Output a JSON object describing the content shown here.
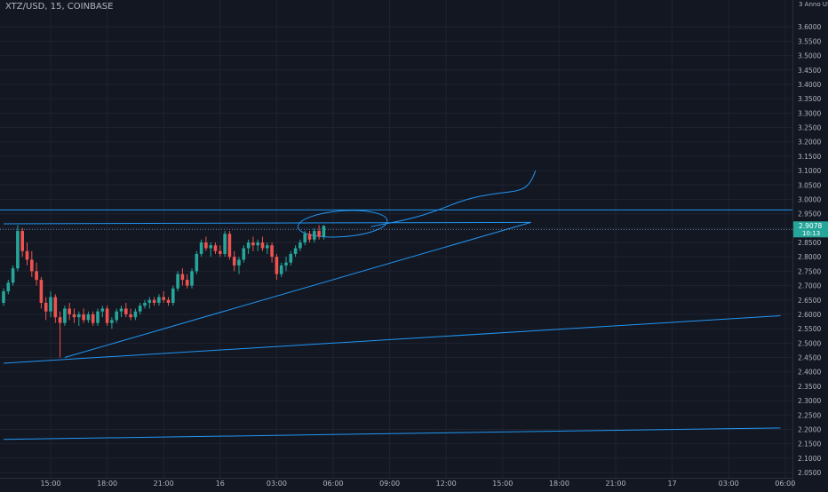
{
  "header": {
    "symbol_title": "XTZ/USD, 15, COINBASE",
    "price_axis_header": "3 Anno USD"
  },
  "chart_data": {
    "type": "candlestick",
    "title": "XTZ/USD, 15, COINBASE",
    "interval": "15",
    "exchange": "COINBASE",
    "ylim": [
      2.05,
      3.65
    ],
    "y_ticks": [
      2.05,
      2.1,
      2.15,
      2.2,
      2.25,
      2.3,
      2.35,
      2.4,
      2.45,
      2.5,
      2.55,
      2.6,
      2.65,
      2.7,
      2.75,
      2.8,
      2.85,
      2.9,
      2.95,
      3.0,
      3.05,
      3.1,
      3.15,
      3.2,
      3.25,
      3.3,
      3.35,
      3.4,
      3.45,
      3.5,
      3.55,
      3.6
    ],
    "y_tick_labels": [
      "2.0500",
      "2.1000",
      "2.1500",
      "2.2000",
      "2.2500",
      "2.3000",
      "2.3500",
      "2.4000",
      "2.4500",
      "2.5000",
      "2.5500",
      "2.6000",
      "2.6500",
      "2.7000",
      "2.7500",
      "2.8000",
      "2.8500",
      "2.9000",
      "2.9500",
      "3.0000",
      "3.0500",
      "3.1000",
      "3.1500",
      "3.2000",
      "3.2500",
      "3.3000",
      "3.3500",
      "3.4000",
      "3.4500",
      "3.5000",
      "3.5500",
      "3.6000"
    ],
    "x_ticks": [
      {
        "label": "15:00",
        "bar": 10
      },
      {
        "label": "18:00",
        "bar": 22
      },
      {
        "label": "21:00",
        "bar": 34
      },
      {
        "label": "16",
        "bar": 46
      },
      {
        "label": "03:00",
        "bar": 58
      },
      {
        "label": "06:00",
        "bar": 70
      },
      {
        "label": "09:00",
        "bar": 82
      },
      {
        "label": "12:00",
        "bar": 94
      },
      {
        "label": "15:00",
        "bar": 106
      },
      {
        "label": "18:00",
        "bar": 118
      },
      {
        "label": "21:00",
        "bar": 130
      },
      {
        "label": "17",
        "bar": 142
      },
      {
        "label": "03:00",
        "bar": 154
      },
      {
        "label": "06:00",
        "bar": 166
      }
    ],
    "candles": [
      {
        "o": 2.64,
        "h": 2.69,
        "l": 2.63,
        "c": 2.68
      },
      {
        "o": 2.68,
        "h": 2.72,
        "l": 2.67,
        "c": 2.71
      },
      {
        "o": 2.71,
        "h": 2.77,
        "l": 2.7,
        "c": 2.76
      },
      {
        "o": 2.76,
        "h": 2.91,
        "l": 2.75,
        "c": 2.89
      },
      {
        "o": 2.89,
        "h": 2.9,
        "l": 2.8,
        "c": 2.82
      },
      {
        "o": 2.82,
        "h": 2.85,
        "l": 2.77,
        "c": 2.79
      },
      {
        "o": 2.79,
        "h": 2.82,
        "l": 2.73,
        "c": 2.75
      },
      {
        "o": 2.75,
        "h": 2.78,
        "l": 2.7,
        "c": 2.72
      },
      {
        "o": 2.72,
        "h": 2.73,
        "l": 2.62,
        "c": 2.64
      },
      {
        "o": 2.64,
        "h": 2.66,
        "l": 2.58,
        "c": 2.61
      },
      {
        "o": 2.61,
        "h": 2.68,
        "l": 2.59,
        "c": 2.66
      },
      {
        "o": 2.66,
        "h": 2.67,
        "l": 2.57,
        "c": 2.59
      },
      {
        "o": 2.59,
        "h": 2.61,
        "l": 2.45,
        "c": 2.57
      },
      {
        "o": 2.57,
        "h": 2.63,
        "l": 2.56,
        "c": 2.62
      },
      {
        "o": 2.62,
        "h": 2.64,
        "l": 2.58,
        "c": 2.6
      },
      {
        "o": 2.6,
        "h": 2.62,
        "l": 2.57,
        "c": 2.59
      },
      {
        "o": 2.59,
        "h": 2.61,
        "l": 2.56,
        "c": 2.6
      },
      {
        "o": 2.6,
        "h": 2.62,
        "l": 2.57,
        "c": 2.58
      },
      {
        "o": 2.58,
        "h": 2.61,
        "l": 2.57,
        "c": 2.6
      },
      {
        "o": 2.6,
        "h": 2.61,
        "l": 2.56,
        "c": 2.57
      },
      {
        "o": 2.57,
        "h": 2.62,
        "l": 2.56,
        "c": 2.61
      },
      {
        "o": 2.61,
        "h": 2.63,
        "l": 2.59,
        "c": 2.62
      },
      {
        "o": 2.62,
        "h": 2.63,
        "l": 2.56,
        "c": 2.57
      },
      {
        "o": 2.57,
        "h": 2.59,
        "l": 2.55,
        "c": 2.58
      },
      {
        "o": 2.58,
        "h": 2.62,
        "l": 2.57,
        "c": 2.61
      },
      {
        "o": 2.61,
        "h": 2.63,
        "l": 2.59,
        "c": 2.62
      },
      {
        "o": 2.62,
        "h": 2.64,
        "l": 2.59,
        "c": 2.6
      },
      {
        "o": 2.6,
        "h": 2.62,
        "l": 2.58,
        "c": 2.59
      },
      {
        "o": 2.59,
        "h": 2.62,
        "l": 2.58,
        "c": 2.61
      },
      {
        "o": 2.61,
        "h": 2.64,
        "l": 2.6,
        "c": 2.63
      },
      {
        "o": 2.63,
        "h": 2.65,
        "l": 2.62,
        "c": 2.64
      },
      {
        "o": 2.64,
        "h": 2.66,
        "l": 2.62,
        "c": 2.65
      },
      {
        "o": 2.65,
        "h": 2.66,
        "l": 2.63,
        "c": 2.64
      },
      {
        "o": 2.64,
        "h": 2.67,
        "l": 2.63,
        "c": 2.66
      },
      {
        "o": 2.66,
        "h": 2.68,
        "l": 2.64,
        "c": 2.65
      },
      {
        "o": 2.65,
        "h": 2.66,
        "l": 2.63,
        "c": 2.64
      },
      {
        "o": 2.64,
        "h": 2.7,
        "l": 2.63,
        "c": 2.69
      },
      {
        "o": 2.69,
        "h": 2.75,
        "l": 2.68,
        "c": 2.74
      },
      {
        "o": 2.74,
        "h": 2.76,
        "l": 2.7,
        "c": 2.72
      },
      {
        "o": 2.72,
        "h": 2.74,
        "l": 2.69,
        "c": 2.7
      },
      {
        "o": 2.7,
        "h": 2.76,
        "l": 2.69,
        "c": 2.75
      },
      {
        "o": 2.75,
        "h": 2.82,
        "l": 2.74,
        "c": 2.81
      },
      {
        "o": 2.81,
        "h": 2.86,
        "l": 2.8,
        "c": 2.85
      },
      {
        "o": 2.85,
        "h": 2.87,
        "l": 2.82,
        "c": 2.83
      },
      {
        "o": 2.83,
        "h": 2.85,
        "l": 2.8,
        "c": 2.84
      },
      {
        "o": 2.84,
        "h": 2.85,
        "l": 2.81,
        "c": 2.82
      },
      {
        "o": 2.82,
        "h": 2.84,
        "l": 2.8,
        "c": 2.81
      },
      {
        "o": 2.81,
        "h": 2.89,
        "l": 2.8,
        "c": 2.88
      },
      {
        "o": 2.88,
        "h": 2.89,
        "l": 2.79,
        "c": 2.8
      },
      {
        "o": 2.8,
        "h": 2.82,
        "l": 2.75,
        "c": 2.77
      },
      {
        "o": 2.77,
        "h": 2.8,
        "l": 2.74,
        "c": 2.79
      },
      {
        "o": 2.79,
        "h": 2.84,
        "l": 2.78,
        "c": 2.83
      },
      {
        "o": 2.83,
        "h": 2.86,
        "l": 2.81,
        "c": 2.85
      },
      {
        "o": 2.85,
        "h": 2.87,
        "l": 2.82,
        "c": 2.84
      },
      {
        "o": 2.84,
        "h": 2.86,
        "l": 2.82,
        "c": 2.85
      },
      {
        "o": 2.85,
        "h": 2.87,
        "l": 2.82,
        "c": 2.83
      },
      {
        "o": 2.83,
        "h": 2.85,
        "l": 2.81,
        "c": 2.84
      },
      {
        "o": 2.84,
        "h": 2.85,
        "l": 2.78,
        "c": 2.8
      },
      {
        "o": 2.8,
        "h": 2.81,
        "l": 2.72,
        "c": 2.74
      },
      {
        "o": 2.74,
        "h": 2.78,
        "l": 2.73,
        "c": 2.77
      },
      {
        "o": 2.77,
        "h": 2.8,
        "l": 2.75,
        "c": 2.78
      },
      {
        "o": 2.78,
        "h": 2.82,
        "l": 2.77,
        "c": 2.81
      },
      {
        "o": 2.81,
        "h": 2.84,
        "l": 2.8,
        "c": 2.83
      },
      {
        "o": 2.83,
        "h": 2.86,
        "l": 2.82,
        "c": 2.85
      },
      {
        "o": 2.85,
        "h": 2.89,
        "l": 2.84,
        "c": 2.88
      },
      {
        "o": 2.88,
        "h": 2.89,
        "l": 2.85,
        "c": 2.86
      },
      {
        "o": 2.86,
        "h": 2.9,
        "l": 2.85,
        "c": 2.89
      },
      {
        "o": 2.89,
        "h": 2.91,
        "l": 2.86,
        "c": 2.87
      },
      {
        "o": 2.87,
        "h": 2.91,
        "l": 2.86,
        "c": 2.9078
      }
    ],
    "last_price": {
      "value": 2.9078,
      "label": "2.9078",
      "countdown": "10:13"
    },
    "drawings": {
      "rising_trendline": {
        "from": {
          "bar": 13,
          "y": 2.45
        },
        "to": {
          "bar": 112,
          "y": 2.92
        }
      },
      "lower_support_line": {
        "from": {
          "bar": 0,
          "y": 2.43
        },
        "to": {
          "bar": 165,
          "y": 2.595
        }
      },
      "bottom_line": {
        "from": {
          "bar": 0,
          "y": 2.165
        },
        "to": {
          "bar": 165,
          "y": 2.205
        }
      },
      "resistance_line": {
        "y": 2.963
      },
      "upper_triangle_line": {
        "from": {
          "bar": 0,
          "y": 2.915
        },
        "to": {
          "bar": 112,
          "y": 2.92
        }
      },
      "horizontal_level": {
        "y": 2.895
      },
      "projection_curve": [
        {
          "bar": 78,
          "y": 2.905
        },
        {
          "bar": 86,
          "y": 2.93
        },
        {
          "bar": 92,
          "y": 2.96
        },
        {
          "bar": 98,
          "y": 3.0
        },
        {
          "bar": 104,
          "y": 3.02
        },
        {
          "bar": 110,
          "y": 3.03
        },
        {
          "bar": 112,
          "y": 3.06
        },
        {
          "bar": 113,
          "y": 3.1
        }
      ],
      "highlight_ellipse": {
        "center": {
          "bar": 72,
          "y": 2.915
        },
        "radius_bars": 9.5,
        "radius_y": 0.045
      }
    },
    "colors": {
      "background": "#131722",
      "grid": "#1f2330",
      "up": "#26a69a",
      "down": "#ef5350",
      "drawing": "#2196f3",
      "axis_text": "#b2b5be",
      "price_badge": "#26a69a"
    },
    "grid": true
  }
}
